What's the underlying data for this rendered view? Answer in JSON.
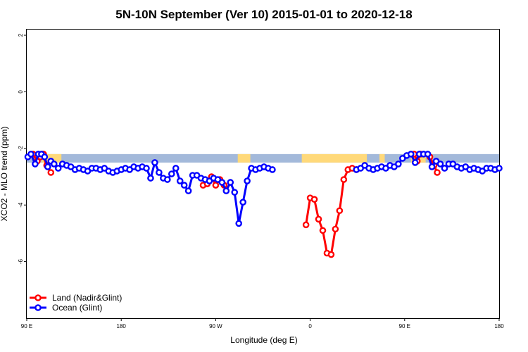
{
  "chart_data": {
    "type": "line",
    "title": "5N-10N September (Ver 10)   2015-01-01 to 2020-12-18",
    "xlabel": "Longitude (deg E)",
    "ylabel": "XCO2 - MLO trend (ppm)",
    "xlim": [
      90,
      450
    ],
    "ylim": [
      -8,
      2.2
    ],
    "yticks": [
      2,
      0,
      -2,
      -4,
      -6
    ],
    "xticks": [
      {
        "value": 90,
        "label": "90 E"
      },
      {
        "value": 180,
        "label": "180"
      },
      {
        "value": 270,
        "label": "90 W"
      },
      {
        "value": 360,
        "label": "0"
      },
      {
        "value": 450,
        "label": "90 E"
      },
      {
        "value": 540,
        "label": "180"
      }
    ],
    "landmask_band": {
      "y_top": -2.2,
      "y_bottom": -2.5,
      "ocean_color": "#a3b9da",
      "land_color": "#ffd97a"
    },
    "land_segments": [
      [
        104,
        123
      ],
      [
        291,
        303
      ],
      [
        352,
        414
      ],
      [
        426,
        431
      ],
      [
        456,
        470
      ]
    ],
    "legend_position": "bottom-left",
    "series": [
      {
        "name": "Land (Nadir&Glint)",
        "color": "#ff0000",
        "x": [
          94,
          98,
          101,
          104,
          107,
          110,
          113
        ],
        "y": [
          -2.2,
          -2.35,
          -2.2,
          -2.25,
          -2.2,
          -2.55,
          -2.85
        ],
        "breaks": [],
        "segments": [
          {
            "x": [
              105,
              109,
              113
            ],
            "y": [
              -2.2,
              -2.6,
              -2.85
            ]
          },
          {
            "x": [
              96,
              100,
              103,
              106
            ],
            "y": [
              -2.2,
              -2.45,
              -2.3,
              -2.2
            ]
          },
          {
            "x": [
              258,
              262,
              266,
              270,
              274,
              278
            ],
            "y": [
              -3.3,
              -3.25,
              -3.0,
              -3.3,
              -3.1,
              -3.3
            ]
          },
          {
            "x": [
              356,
              360,
              364,
              368,
              372,
              376,
              380,
              384,
              388,
              392,
              396,
              400,
              404
            ],
            "y": [
              -4.7,
              -3.75,
              -3.8,
              -4.5,
              -4.9,
              -5.7,
              -5.75,
              -4.85,
              -4.2,
              -3.1,
              -2.75,
              -2.7,
              -2.75
            ]
          },
          {
            "x": [
              459,
              462,
              465
            ],
            "y": [
              -2.2,
              -2.45,
              -2.2
            ]
          },
          {
            "x": [
              474,
              478,
              481
            ],
            "y": [
              -2.3,
              -2.6,
              -2.85
            ]
          }
        ]
      },
      {
        "name": "Ocean (Glint)",
        "color": "#0000ff",
        "segments": [
          {
            "x": [
              91,
              94,
              98,
              101,
              104,
              107,
              110,
              113,
              116,
              120,
              124,
              128,
              132,
              136,
              140,
              144,
              148,
              152,
              156,
              160,
              164,
              168,
              172,
              176,
              180,
              184,
              188,
              192,
              196,
              200,
              204,
              208,
              212,
              216,
              220,
              224,
              228,
              232,
              236,
              240,
              244,
              248,
              252,
              256,
              260,
              264,
              268,
              272,
              276,
              280,
              284,
              288,
              292,
              296,
              300,
              304,
              308,
              312,
              316,
              320,
              324
            ],
            "y": [
              -2.3,
              -2.2,
              -2.55,
              -2.2,
              -2.2,
              -2.3,
              -2.65,
              -2.45,
              -2.55,
              -2.7,
              -2.55,
              -2.6,
              -2.65,
              -2.75,
              -2.7,
              -2.75,
              -2.8,
              -2.7,
              -2.7,
              -2.75,
              -2.7,
              -2.8,
              -2.85,
              -2.8,
              -2.75,
              -2.7,
              -2.75,
              -2.65,
              -2.7,
              -2.65,
              -2.7,
              -3.05,
              -2.5,
              -2.85,
              -3.05,
              -3.1,
              -2.9,
              -2.7,
              -3.15,
              -3.3,
              -3.5,
              -2.95,
              -2.95,
              -3.05,
              -3.1,
              -3.15,
              -3.05,
              -3.1,
              -3.2,
              -3.5,
              -3.2,
              -3.55,
              -4.65,
              -3.9,
              -3.15,
              -2.7,
              -2.75,
              -2.7,
              -2.65,
              -2.7,
              -2.75
            ]
          },
          {
            "x": [
              404,
              408,
              412,
              416,
              420,
              424,
              428,
              432,
              436,
              440,
              444,
              448,
              452,
              456,
              460,
              464,
              468,
              472,
              476,
              480,
              484,
              488,
              492,
              496,
              500,
              504,
              508,
              512,
              516,
              520,
              524,
              528,
              532,
              536,
              540
            ],
            "y": [
              -2.75,
              -2.7,
              -2.6,
              -2.7,
              -2.75,
              -2.7,
              -2.65,
              -2.7,
              -2.6,
              -2.65,
              -2.55,
              -2.35,
              -2.25,
              -2.2,
              -2.5,
              -2.2,
              -2.2,
              -2.2,
              -2.65,
              -2.45,
              -2.55,
              -2.7,
              -2.55,
              -2.55,
              -2.65,
              -2.7,
              -2.65,
              -2.75,
              -2.7,
              -2.75,
              -2.8,
              -2.7,
              -2.7,
              -2.75,
              -2.7
            ]
          }
        ]
      }
    ]
  }
}
